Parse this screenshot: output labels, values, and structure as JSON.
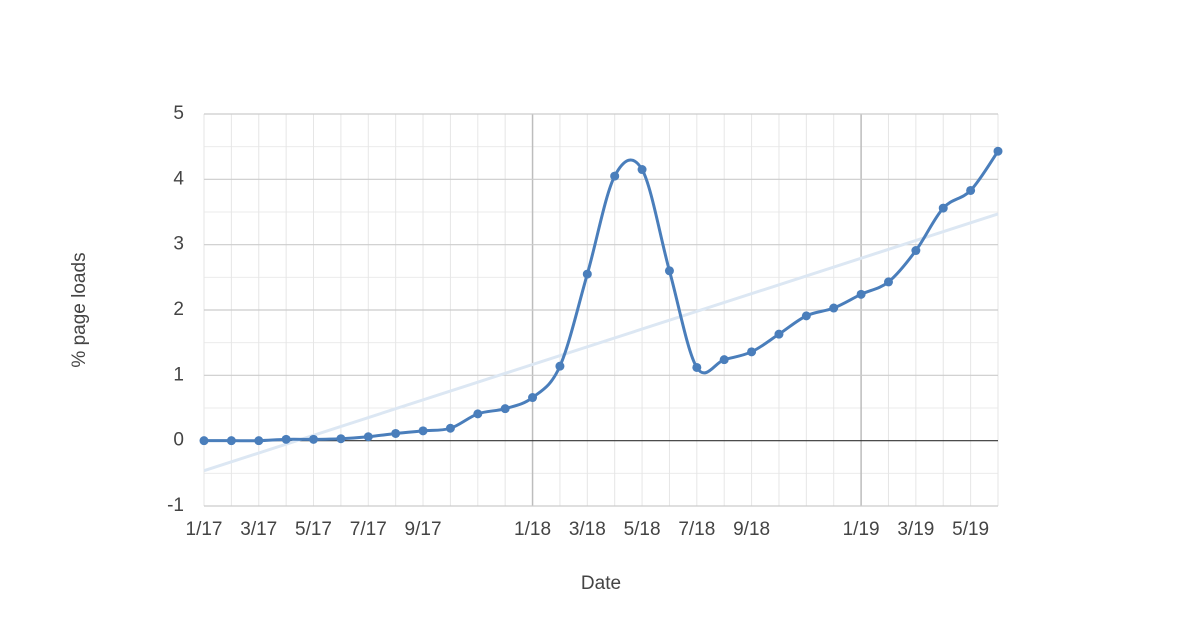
{
  "chart_data": {
    "type": "line",
    "x_label": "Date",
    "y_label": "% page loads",
    "categories": [
      "1/17",
      null,
      "3/17",
      null,
      "5/17",
      null,
      "7/17",
      null,
      "9/17",
      null,
      null,
      null,
      "1/18",
      null,
      "3/18",
      null,
      "5/18",
      null,
      "7/18",
      null,
      "9/18",
      null,
      null,
      null,
      "1/19",
      null,
      "3/19",
      null,
      "5/19",
      null
    ],
    "series": [
      {
        "color": "#4a7ebb",
        "values": [
          0,
          0,
          0,
          0.02,
          0.02,
          0.03,
          0.06,
          0.11,
          0.15,
          0.19,
          0.41,
          0.49,
          0.66,
          1.14,
          2.55,
          4.05,
          4.15,
          2.6,
          1.12,
          1.24,
          1.36,
          1.63,
          1.91,
          2.03,
          2.24,
          2.43,
          2.91,
          3.56,
          3.83,
          4.43
        ]
      }
    ],
    "trendline": {
      "color": "#dce7f3",
      "values": [
        -0.46,
        3.47
      ]
    },
    "ylim": [
      -1,
      5
    ],
    "yticks": [
      -1,
      0,
      1,
      2,
      3,
      4,
      5
    ],
    "grid": true
  }
}
